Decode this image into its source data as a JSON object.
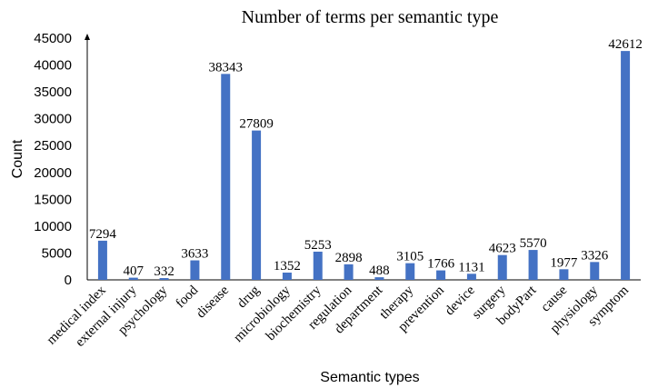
{
  "chart_data": {
    "type": "bar",
    "title": "Number of terms per semantic type",
    "xlabel": "Semantic types",
    "ylabel": "Count",
    "ylim": [
      0,
      45000
    ],
    "yticks": [
      "0",
      "5000",
      "10000",
      "15000",
      "20000",
      "25000",
      "30000",
      "35000",
      "40000",
      "45000"
    ],
    "grid": false,
    "legend": "none",
    "bar_color": "#4472C4",
    "categories": [
      "medical index",
      "external injury",
      "psychology",
      "food",
      "disease",
      "drug",
      "microbiology",
      "biochemistry",
      "regulation",
      "department",
      "therapy",
      "prevention",
      "device",
      "surgery",
      "bodyPart",
      "cause",
      "physiology",
      "symptom"
    ],
    "values": [
      7294,
      407,
      332,
      3633,
      38343,
      27809,
      1352,
      5253,
      2898,
      488,
      3105,
      1766,
      1131,
      4623,
      5570,
      1977,
      3326,
      42612
    ],
    "data_labels": [
      "7294",
      "407",
      "332",
      "3633",
      "38343",
      "27809",
      "1352",
      "5253",
      "2898",
      "488",
      "3105",
      "1766",
      "1131",
      "4623",
      "5570",
      "1977",
      "3326",
      "42612"
    ]
  }
}
